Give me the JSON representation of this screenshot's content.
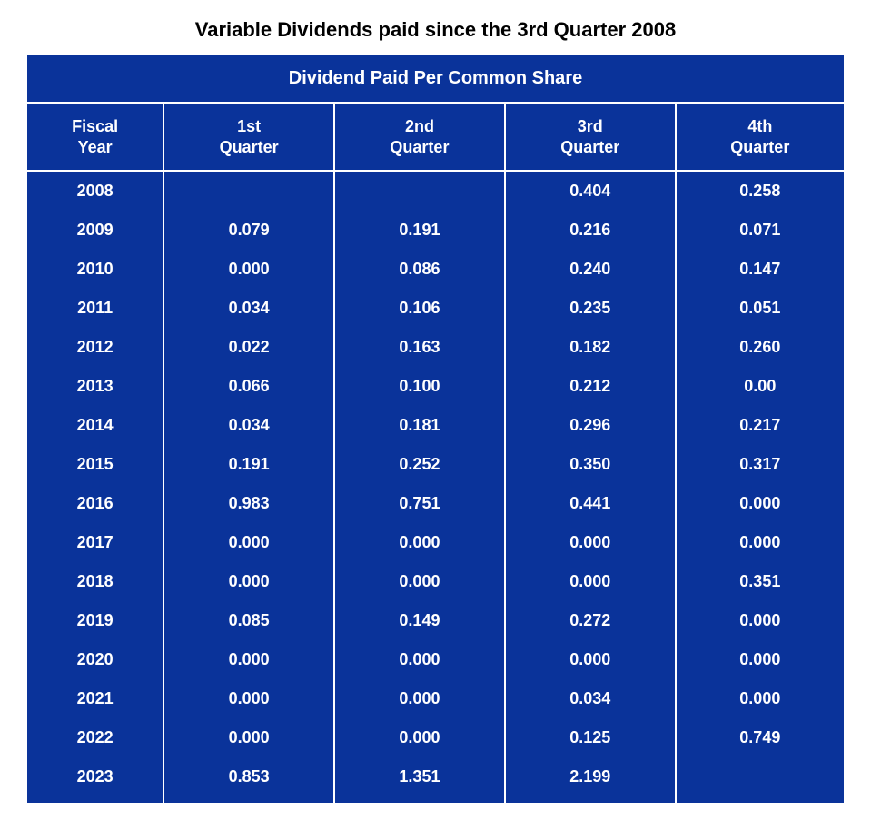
{
  "title": "Variable Dividends paid since the 3rd Quarter 2008",
  "table": {
    "super_header": "Dividend Paid Per Common Share",
    "columns": [
      "Fiscal\nYear",
      "1st\nQuarter",
      "2nd\nQuarter",
      "3rd\nQuarter",
      "4th\nQuarter"
    ],
    "rows": [
      [
        "2008",
        "",
        "",
        "0.404",
        "0.258"
      ],
      [
        "2009",
        "0.079",
        "0.191",
        "0.216",
        "0.071"
      ],
      [
        "2010",
        "0.000",
        "0.086",
        "0.240",
        "0.147"
      ],
      [
        "2011",
        "0.034",
        "0.106",
        "0.235",
        "0.051"
      ],
      [
        "2012",
        "0.022",
        "0.163",
        "0.182",
        "0.260"
      ],
      [
        "2013",
        "0.066",
        "0.100",
        "0.212",
        "0.00"
      ],
      [
        "2014",
        "0.034",
        "0.181",
        "0.296",
        "0.217"
      ],
      [
        "2015",
        "0.191",
        "0.252",
        "0.350",
        "0.317"
      ],
      [
        "2016",
        "0.983",
        "0.751",
        "0.441",
        "0.000"
      ],
      [
        "2017",
        "0.000",
        "0.000",
        "0.000",
        "0.000"
      ],
      [
        "2018",
        "0.000",
        "0.000",
        "0.000",
        "0.351"
      ],
      [
        "2019",
        "0.085",
        "0.149",
        "0.272",
        "0.000"
      ],
      [
        "2020",
        "0.000",
        "0.000",
        "0.000",
        "0.000"
      ],
      [
        "2021",
        "0.000",
        "0.000",
        "0.034",
        "0.000"
      ],
      [
        "2022",
        "0.000",
        "0.000",
        "0.125",
        "0.749"
      ],
      [
        "2023",
        "0.853",
        "1.351",
        "2.199",
        ""
      ]
    ],
    "colors": {
      "table_bg": "#0a339a",
      "border": "#ffffff",
      "text": "#ffffff",
      "title_color": "#000000",
      "page_bg": "#ffffff"
    },
    "fonts": {
      "title_pt": 22,
      "super_header_pt": 20,
      "header_pt": 18,
      "cell_pt": 18,
      "family": "Verdana"
    }
  }
}
